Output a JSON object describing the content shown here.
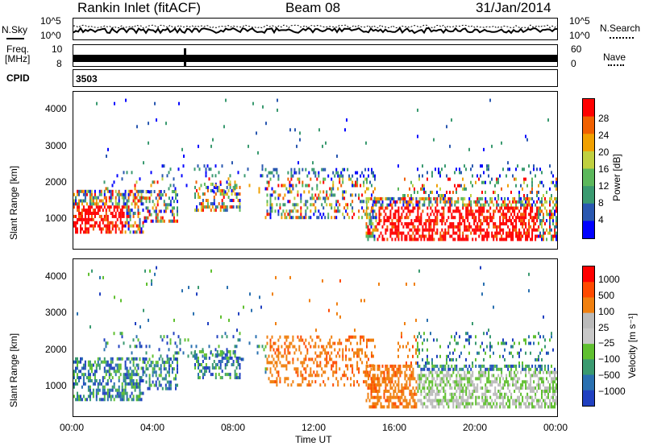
{
  "header": {
    "station": "Rankin Inlet (fitACF)",
    "beam": "Beam 08",
    "date": "31/Jan/2014"
  },
  "param_panels": {
    "nsky_label": "N.Sky",
    "nsky_ticks": [
      "10^5",
      "10^0"
    ],
    "nsearch_label": "N.Search",
    "nsearch_ticks": [
      "10^5",
      "10^0"
    ],
    "freq_label": "Freq.",
    "freq_unit": "[MHz]",
    "freq_ticks": [
      "10",
      "8"
    ],
    "nave_label": "Nave",
    "nave_ticks": [
      "60",
      "0"
    ],
    "cpid_label": "CPID",
    "cpid_value": "3503"
  },
  "colors": {
    "power": [
      "#0000ff",
      "#2a58b0",
      "#3a9a70",
      "#5cb85c",
      "#c0d040",
      "#f0a000",
      "#f06000",
      "#ff0000"
    ],
    "velocity": [
      "#ff0000",
      "#ff4a00",
      "#f08010",
      "#bbbbbb",
      "#c8c8c8",
      "#60c030",
      "#3a9a70",
      "#2a70b0",
      "#2040c0"
    ]
  },
  "chart_data": [
    {
      "type": "heatmap",
      "quantity": "Power",
      "ylabel": "Slant Range [km]",
      "yticks": [
        "1000",
        "2000",
        "3000",
        "4000"
      ],
      "ylim": [
        200,
        4500
      ],
      "xticks": [
        "00:00",
        "04:00",
        "08:00",
        "12:00",
        "16:00",
        "20:00",
        "00:00"
      ],
      "xlim_hours": [
        0,
        24
      ],
      "colorbar_label": "Power [dB]",
      "colorbar_ticks": [
        "4",
        "8",
        "12",
        "16",
        "20",
        "24",
        "28"
      ]
    },
    {
      "type": "heatmap",
      "quantity": "Velocity",
      "ylabel": "Slant Range [km]",
      "yticks": [
        "1000",
        "2000",
        "3000",
        "4000"
      ],
      "ylim": [
        200,
        4500
      ],
      "xticks": [
        "00:00",
        "04:00",
        "08:00",
        "12:00",
        "16:00",
        "20:00",
        "00:00"
      ],
      "xlim_hours": [
        0,
        24
      ],
      "xlabel": "Time UT",
      "colorbar_label": "Velocity [m s⁻¹]",
      "colorbar_ticks": [
        "1000",
        "500",
        "100",
        "25",
        "−25",
        "−100",
        "−500",
        "−1000"
      ]
    }
  ]
}
